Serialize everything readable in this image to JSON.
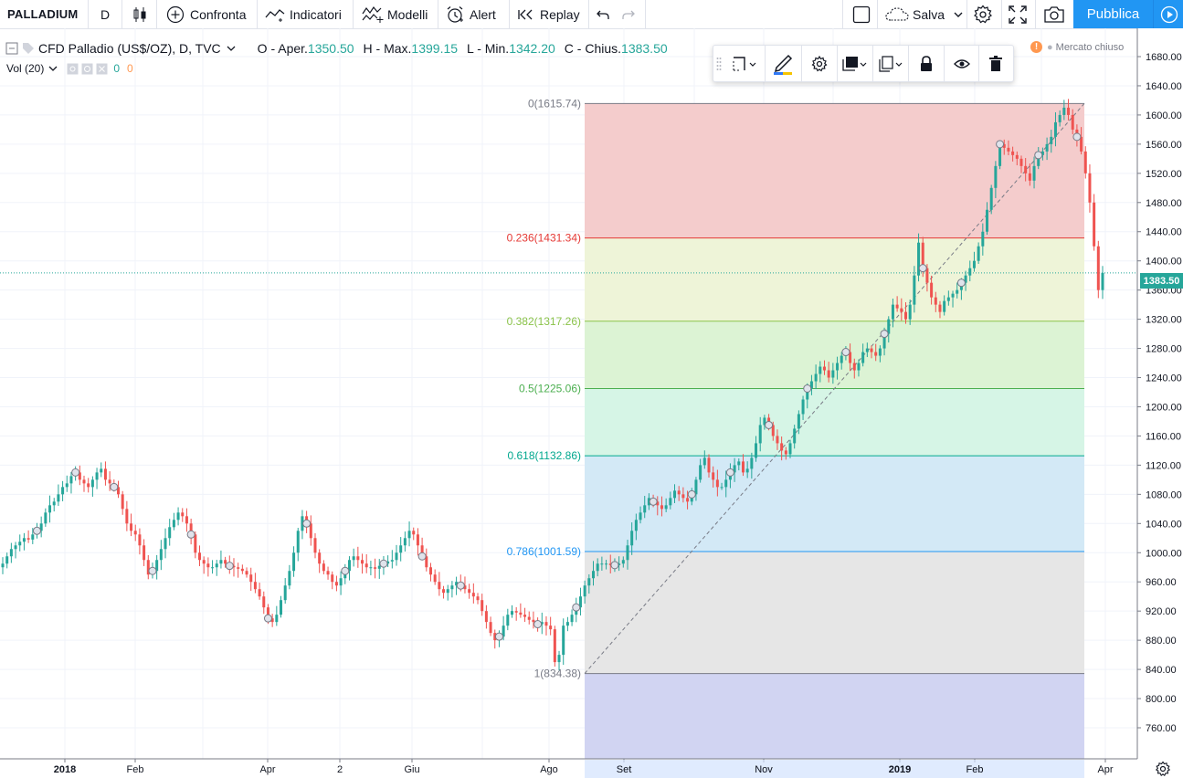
{
  "toolbar": {
    "symbol": "PALLADIUM",
    "interval": "D",
    "compare_label": "Confronta",
    "indicators_label": "Indicatori",
    "templates_label": "Modelli",
    "alert_label": "Alert",
    "replay_label": "Replay",
    "save_label": "Salva",
    "publish_label": "Pubblica"
  },
  "legend": {
    "title": "CFD Palladio (US$/OZ), D, TVC",
    "open_label": "O - Aper.",
    "open_value": "1350.50",
    "high_label": "H - Max.",
    "high_value": "1399.15",
    "low_label": "L - Min.",
    "low_value": "1342.20",
    "close_label": "C - Chius.",
    "close_value": "1383.50",
    "volume_label": "Vol (20)",
    "volume_value_1": "0",
    "volume_value_2": "0",
    "market_status": "Mercato chiuso"
  },
  "price_label": "1383.50",
  "colors": {
    "up": "#26a69a",
    "down": "#ef5350",
    "accent": "#2196f3"
  },
  "chart_data": {
    "type": "candlestick",
    "symbol": "PALLADIUM",
    "interval": "D",
    "y_ticks": [
      "1680.00",
      "1640.00",
      "1600.00",
      "1560.00",
      "1520.00",
      "1480.00",
      "1440.00",
      "1400.00",
      "1360.00",
      "1320.00",
      "1280.00",
      "1240.00",
      "1200.00",
      "1160.00",
      "1120.00",
      "1080.00",
      "1040.00",
      "1000.00",
      "960.00",
      "920.00",
      "880.00",
      "840.00",
      "800.00",
      "760.00"
    ],
    "x_ticks": [
      "2018",
      "Feb",
      "Apr",
      "2",
      "Giu",
      "Ago",
      "Set",
      "Nov",
      "2019",
      "Feb",
      "Apr"
    ],
    "ylim": [
      755,
      1690
    ],
    "last_price": 1383.5,
    "fibonacci": [
      {
        "level": "0",
        "price": 1615.74,
        "label": "0(1615.74)",
        "color": "#787b86",
        "fill": "#f4cccc"
      },
      {
        "level": "0.236",
        "price": 1431.34,
        "label": "0.236(1431.34)",
        "color": "#e53935",
        "fill": "#eef4d8"
      },
      {
        "level": "0.382",
        "price": 1317.26,
        "label": "0.382(1317.26)",
        "color": "#8bc34a",
        "fill": "#dcf3d4"
      },
      {
        "level": "0.5",
        "price": 1225.06,
        "label": "0.5(1225.06)",
        "color": "#4caf50",
        "fill": "#d6f5e6"
      },
      {
        "level": "0.618",
        "price": 1132.86,
        "label": "0.618(1132.86)",
        "color": "#00a78e",
        "fill": "#d3e9f6"
      },
      {
        "level": "0.786",
        "price": 1001.59,
        "label": "0.786(1001.59)",
        "color": "#2196f3",
        "fill": "#e6e6e6"
      },
      {
        "level": "1",
        "price": 834.38,
        "label": "1(834.38)",
        "color": "#787b86",
        "fill": "#d1d4f2"
      }
    ],
    "closes": [
      985,
      995,
      1005,
      1010,
      1015,
      1020,
      1018,
      1025,
      1030,
      1040,
      1055,
      1065,
      1070,
      1080,
      1090,
      1095,
      1105,
      1110,
      1100,
      1095,
      1090,
      1100,
      1110,
      1115,
      1100,
      1095,
      1090,
      1080,
      1060,
      1040,
      1030,
      1025,
      1010,
      990,
      970,
      975,
      990,
      1005,
      1020,
      1035,
      1045,
      1055,
      1050,
      1040,
      1025,
      1000,
      990,
      985,
      980,
      980,
      985,
      990,
      985,
      982,
      980,
      978,
      975,
      970,
      960,
      950,
      940,
      925,
      910,
      905,
      915,
      935,
      955,
      975,
      1000,
      1030,
      1050,
      1040,
      1020,
      1000,
      985,
      975,
      970,
      960,
      955,
      965,
      975,
      990,
      995,
      990,
      985,
      980,
      980,
      978,
      982,
      985,
      988,
      990,
      1000,
      1010,
      1020,
      1030,
      1025,
      1010,
      995,
      980,
      970,
      960,
      950,
      945,
      950,
      955,
      960,
      955,
      950,
      945,
      940,
      935,
      920,
      905,
      890,
      880,
      885,
      900,
      915,
      920,
      918,
      915,
      912,
      908,
      905,
      902,
      905,
      900,
      895,
      850,
      860,
      900,
      905,
      915,
      925,
      940,
      955,
      965,
      975,
      985,
      985,
      985,
      983,
      983,
      985,
      990,
      1010,
      1030,
      1045,
      1055,
      1065,
      1075,
      1070,
      1065,
      1060,
      1065,
      1075,
      1085,
      1080,
      1075,
      1070,
      1080,
      1100,
      1120,
      1130,
      1110,
      1100,
      1090,
      1090,
      1100,
      1110,
      1120,
      1125,
      1110,
      1115,
      1130,
      1150,
      1175,
      1185,
      1175,
      1160,
      1150,
      1140,
      1135,
      1150,
      1170,
      1190,
      1210,
      1225,
      1235,
      1245,
      1255,
      1250,
      1240,
      1250,
      1260,
      1270,
      1275,
      1260,
      1250,
      1260,
      1275,
      1280,
      1275,
      1270,
      1280,
      1300,
      1320,
      1340,
      1335,
      1330,
      1320,
      1340,
      1380,
      1425,
      1390,
      1370,
      1350,
      1340,
      1330,
      1345,
      1350,
      1355,
      1360,
      1370,
      1380,
      1390,
      1400,
      1420,
      1440,
      1470,
      1500,
      1530,
      1560,
      1555,
      1550,
      1545,
      1540,
      1530,
      1520,
      1510,
      1530,
      1545,
      1550,
      1560,
      1570,
      1590,
      1600,
      1610,
      1600,
      1580,
      1570,
      1550,
      1520,
      1480,
      1420,
      1360,
      1383.5
    ]
  }
}
